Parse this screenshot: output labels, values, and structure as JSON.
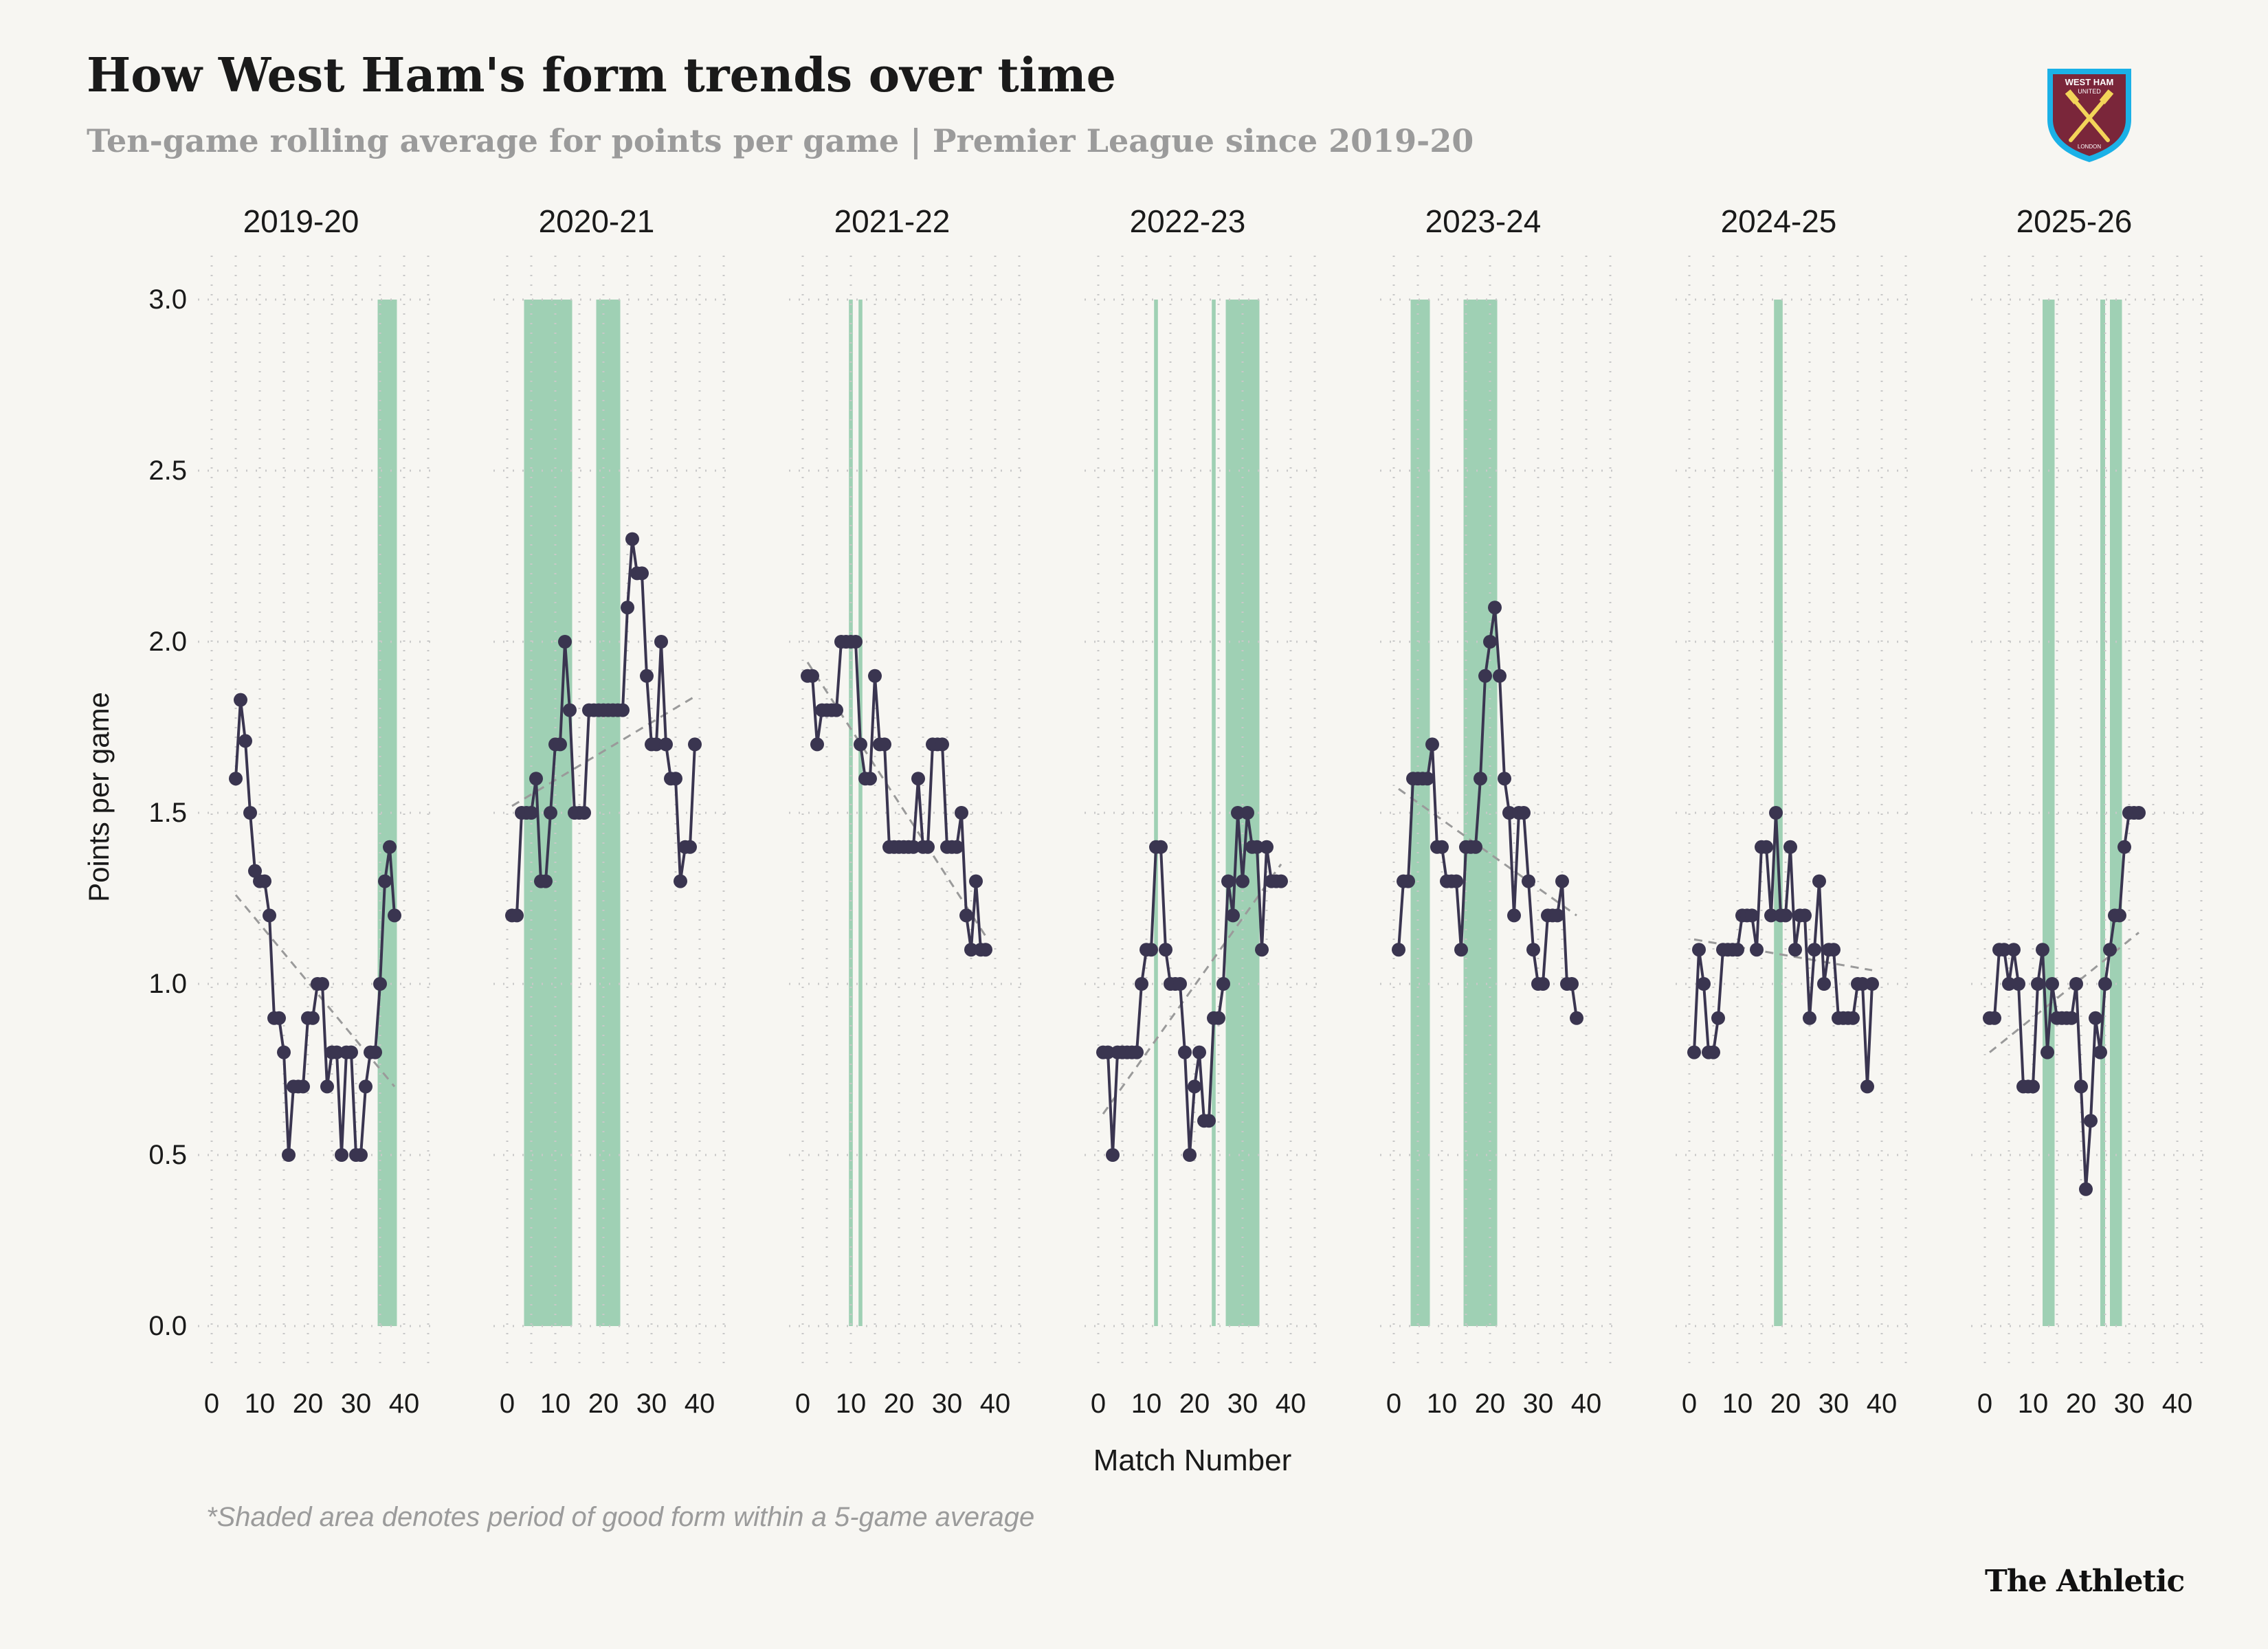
{
  "title": "How West Ham's form trends over time",
  "subtitle": "Ten-game rolling average for points per game | Premier League since 2019-20",
  "footnote": "*Shaded area denotes period of good form within a 5-game average",
  "brand": "The Athletic",
  "crest": {
    "top_text": "WEST HAM",
    "mid_text": "UNITED",
    "bottom_text": "LONDON"
  },
  "colors": {
    "background": "#f7f6f2",
    "line": "#3a3550",
    "shade": "#9fd0b4",
    "trend": "#9a9a9a",
    "grid": "#c8c8c8",
    "crest_claret": "#7a263a",
    "crest_blue": "#1bb1e7",
    "crest_gold": "#f3d459"
  },
  "chart_data": {
    "type": "line",
    "ylabel": "Points per game",
    "xlabel": "Match Number",
    "ylim": [
      0,
      3
    ],
    "xlim": [
      0,
      40
    ],
    "yticks": [
      "0.0",
      "0.5",
      "1.0",
      "1.5",
      "2.0",
      "2.5",
      "3.0"
    ],
    "xticks": [
      "0",
      "10",
      "20",
      "30",
      "40"
    ],
    "panels": [
      {
        "season": "2019-20",
        "start": 5,
        "values": [
          1.6,
          1.83,
          1.71,
          1.5,
          1.33,
          1.3,
          1.3,
          1.2,
          0.9,
          0.9,
          0.8,
          0.5,
          0.7,
          0.7,
          0.7,
          0.9,
          0.9,
          1.0,
          1.0,
          0.7,
          0.8,
          0.8,
          0.5,
          0.8,
          0.8,
          0.5,
          0.5,
          0.7,
          0.8,
          0.8,
          1.0,
          1.3,
          1.4,
          1.2
        ],
        "trend": [
          [
            5,
            1.26
          ],
          [
            38,
            0.7
          ]
        ],
        "shaded": [
          [
            34.5,
            38.5
          ]
        ]
      },
      {
        "season": "2020-21",
        "start": 1,
        "values": [
          1.2,
          1.2,
          1.5,
          1.5,
          1.5,
          1.6,
          1.3,
          1.3,
          1.5,
          1.7,
          1.7,
          2.0,
          1.8,
          1.5,
          1.5,
          1.5,
          1.8,
          1.8,
          1.8,
          1.8,
          1.8,
          1.8,
          1.8,
          1.8,
          2.1,
          2.3,
          2.2,
          2.2,
          1.9,
          1.7,
          1.7,
          2.0,
          1.7,
          1.6,
          1.6,
          1.3,
          1.4,
          1.4,
          1.7
        ],
        "trend": [
          [
            1,
            1.52
          ],
          [
            39,
            1.84
          ]
        ],
        "shaded": [
          [
            3.5,
            13.5
          ],
          [
            18.5,
            23.5
          ]
        ]
      },
      {
        "season": "2021-22",
        "start": 1,
        "values": [
          1.9,
          1.9,
          1.7,
          1.8,
          1.8,
          1.8,
          1.8,
          2.0,
          2.0,
          2.0,
          2.0,
          1.7,
          1.6,
          1.6,
          1.9,
          1.7,
          1.7,
          1.4,
          1.4,
          1.4,
          1.4,
          1.4,
          1.4,
          1.6,
          1.4,
          1.4,
          1.7,
          1.7,
          1.7,
          1.4,
          1.4,
          1.4,
          1.5,
          1.2,
          1.1,
          1.3,
          1.1,
          1.1
        ],
        "trend": [
          [
            1,
            1.94
          ],
          [
            38,
            1.14
          ]
        ],
        "shaded": [
          [
            9.6,
            10.4
          ],
          [
            11.6,
            12.4
          ]
        ]
      },
      {
        "season": "2022-23",
        "start": 1,
        "values": [
          0.8,
          0.8,
          0.5,
          0.8,
          0.8,
          0.8,
          0.8,
          0.8,
          1.0,
          1.1,
          1.1,
          1.4,
          1.4,
          1.1,
          1.0,
          1.0,
          1.0,
          0.8,
          0.5,
          0.7,
          0.8,
          0.6,
          0.6,
          0.9,
          0.9,
          1.0,
          1.3,
          1.2,
          1.5,
          1.3,
          1.5,
          1.4,
          1.4,
          1.1,
          1.4,
          1.3,
          1.3,
          1.3
        ],
        "trend": [
          [
            1,
            0.62
          ],
          [
            38,
            1.35
          ]
        ],
        "shaded": [
          [
            11.6,
            12.4
          ],
          [
            23.6,
            24.4
          ],
          [
            26.5,
            33.5
          ]
        ]
      },
      {
        "season": "2023-24",
        "start": 1,
        "values": [
          1.1,
          1.3,
          1.3,
          1.6,
          1.6,
          1.6,
          1.6,
          1.7,
          1.4,
          1.4,
          1.3,
          1.3,
          1.3,
          1.1,
          1.4,
          1.4,
          1.4,
          1.6,
          1.9,
          2.0,
          2.1,
          1.9,
          1.6,
          1.5,
          1.2,
          1.5,
          1.5,
          1.3,
          1.1,
          1.0,
          1.0,
          1.2,
          1.2,
          1.2,
          1.3,
          1.0,
          1.0,
          0.9
        ],
        "trend": [
          [
            1,
            1.57
          ],
          [
            38,
            1.2
          ]
        ],
        "shaded": [
          [
            3.5,
            7.5
          ],
          [
            14.5,
            21.5
          ]
        ]
      },
      {
        "season": "2024-25",
        "start": 1,
        "values": [
          0.8,
          1.1,
          1.0,
          0.8,
          0.8,
          0.9,
          1.1,
          1.1,
          1.1,
          1.1,
          1.2,
          1.2,
          1.2,
          1.1,
          1.4,
          1.4,
          1.2,
          1.5,
          1.2,
          1.2,
          1.4,
          1.1,
          1.2,
          1.2,
          0.9,
          1.1,
          1.3,
          1.0,
          1.1,
          1.1,
          0.9,
          0.9,
          0.9,
          0.9,
          1.0,
          1.0,
          0.7,
          1.0
        ],
        "trend": [
          [
            1,
            1.13
          ],
          [
            38,
            1.04
          ]
        ],
        "shaded": [
          [
            17.6,
            19.4
          ]
        ]
      },
      {
        "season": "2025-26",
        "start": 1,
        "values": [
          0.9,
          0.9,
          1.1,
          1.1,
          1.0,
          1.1,
          1.0,
          0.7,
          0.7,
          0.7,
          1.0,
          1.1,
          0.8,
          1.0,
          0.9,
          0.9,
          0.9,
          0.9,
          1.0,
          0.7,
          0.4,
          0.6,
          0.9,
          0.8,
          1.0,
          1.1,
          1.2,
          1.2,
          1.4,
          1.5,
          1.5,
          1.5
        ],
        "trend": [
          [
            1,
            0.8
          ],
          [
            32,
            1.15
          ]
        ],
        "shaded": [
          [
            12,
            14.5
          ],
          [
            24,
            25
          ],
          [
            26,
            28.5
          ]
        ]
      }
    ]
  }
}
